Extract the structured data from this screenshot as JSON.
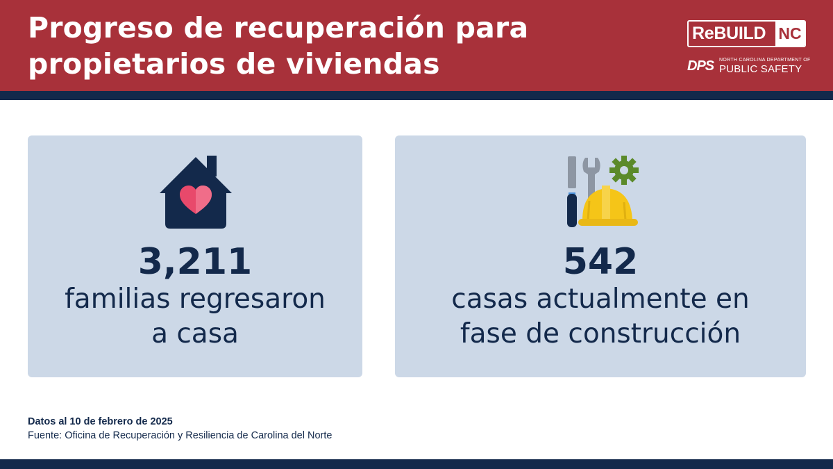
{
  "header": {
    "title_lines": [
      "Progreso de recuperación para",
      "propietarios de viviendas"
    ]
  },
  "logos": {
    "rebuild_word": "ReBUILD",
    "rebuild_nc": "NC",
    "dps_mark": "DPS",
    "dps_small": "NORTH CAROLINA DEPARTMENT OF",
    "dps_big": "PUBLIC SAFETY"
  },
  "stats": [
    {
      "icon": "house-heart-icon",
      "value": "3,211",
      "label_lines": [
        "familias regresaron",
        "a casa"
      ]
    },
    {
      "icon": "tools-hardhat-icon",
      "value": "542",
      "label_lines": [
        "casas actualmente en",
        "fase de construcción"
      ]
    }
  ],
  "footer": {
    "date_line": "Datos al 10 de febrero de 2025",
    "source_line": "Fuente: Oficina de Recuperación y Resiliencia de Carolina del Norte"
  },
  "colors": {
    "header_red": "#a8313a",
    "navy": "#13294b",
    "card_bg": "#ccd8e7",
    "heart_pink": "#e8496b",
    "hardhat_yellow": "#f5c518",
    "gear_green": "#5b8a2a"
  }
}
